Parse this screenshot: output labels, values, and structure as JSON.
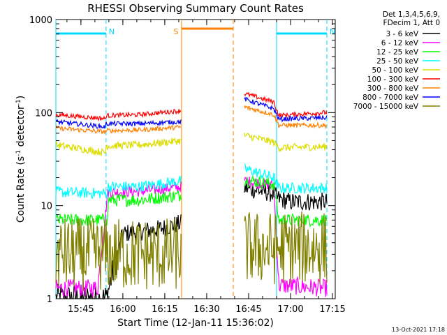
{
  "chart_data": {
    "type": "line",
    "title": "RHESSI Observing Summary Count Rates",
    "xlabel": "Start Time (12-Jan-11 15:36:02)",
    "ylabel": "Count Rate (s⁻¹ detector⁻¹)",
    "ylabel_parts": {
      "pre": "Count Rate (s",
      "sup1": "-1",
      "mid": " detector",
      "sup2": "-1",
      "post": ")"
    },
    "y_scale": "log",
    "ylim": [
      1,
      1000
    ],
    "xlim": [
      "15:36:02",
      "17:16:00"
    ],
    "x_ticks": [
      "15:45",
      "16:00",
      "16:15",
      "16:30",
      "16:45",
      "17:00",
      "17:15"
    ],
    "y_ticks": [
      "1",
      "10",
      "100",
      "1000"
    ],
    "grid": false,
    "legend_position": "right",
    "legend_header": [
      "Det 1,3,4,5,6,9,",
      "FDecim 1, Att 0"
    ],
    "timestamp": "13-Oct-2021 17:18",
    "data_gap": [
      "16:21:00",
      "16:43:30"
    ],
    "events": [
      {
        "label": "N",
        "kind": "night",
        "color": "#00d8ff",
        "start": "15:36:02",
        "end": "15:54:00",
        "night_begin": "15:36:02",
        "night_end": "15:54:00"
      },
      {
        "label": "N",
        "kind": "night",
        "color": "#00d8ff",
        "start": "16:55:00",
        "end": "17:13:00",
        "night_begin": "16:55:00",
        "night_end": "17:13:00"
      },
      {
        "label": "S",
        "kind": "saa",
        "color": "#ff8000",
        "start": "16:21:00",
        "end": "16:39:30"
      }
    ],
    "series": [
      {
        "name": "3 - 6 keV",
        "color": "#000000",
        "pre": [
          [
            15.6,
            1
          ],
          [
            15.9,
            1
          ],
          [
            16.0,
            5.0
          ],
          [
            16.21,
            5.6
          ],
          [
            16.35,
            6.5
          ]
        ],
        "post": [
          [
            16.725,
            15.5
          ],
          [
            16.9,
            13.5
          ],
          [
            16.92,
            12.0
          ],
          [
            17.0,
            11
          ]
        ],
        "noise": 0.1
      },
      {
        "name": "6 - 12 keV",
        "color": "#ff00ff",
        "pre": [
          [
            15.6,
            1.3
          ],
          [
            15.85,
            1.3
          ],
          [
            15.91,
            14.0
          ],
          [
            16.1,
            14.2
          ],
          [
            16.35,
            16
          ]
        ],
        "post": [
          [
            16.725,
            18.5
          ],
          [
            16.9,
            16.5
          ],
          [
            16.93,
            1.4
          ],
          [
            17.2,
            1.3
          ]
        ],
        "noise": 0.06
      },
      {
        "name": "12 - 25 keV",
        "color": "#00ff00",
        "pre": [
          [
            15.6,
            7.0
          ],
          [
            15.91,
            7.0
          ],
          [
            15.92,
            11.5
          ],
          [
            16.1,
            11.5
          ],
          [
            16.35,
            13
          ]
        ],
        "post": [
          [
            16.725,
            19
          ],
          [
            16.9,
            17
          ],
          [
            16.93,
            7.0
          ],
          [
            17.2,
            7.0
          ]
        ],
        "noise": 0.07
      },
      {
        "name": "25 - 50 keV",
        "color": "#00ffff",
        "pre": [
          [
            15.6,
            14.0
          ],
          [
            15.91,
            13.5
          ],
          [
            15.92,
            16.0
          ],
          [
            16.1,
            16.0
          ],
          [
            16.35,
            18.5
          ]
        ],
        "post": [
          [
            16.725,
            25
          ],
          [
            16.9,
            20
          ],
          [
            16.93,
            15.5
          ],
          [
            17.2,
            15.5
          ]
        ],
        "noise": 0.06
      },
      {
        "name": "50 - 100 keV",
        "color": "#dddd00",
        "pre": [
          [
            15.6,
            45
          ],
          [
            15.9,
            37
          ],
          [
            15.92,
            44
          ],
          [
            16.1,
            45
          ],
          [
            16.35,
            50
          ]
        ],
        "post": [
          [
            16.725,
            57
          ],
          [
            16.9,
            48
          ],
          [
            16.93,
            42
          ],
          [
            17.2,
            43
          ]
        ],
        "noise": 0.04
      },
      {
        "name": "100 - 300 keV",
        "color": "#ff0000",
        "pre": [
          [
            15.6,
            95
          ],
          [
            15.9,
            86
          ],
          [
            15.92,
            93
          ],
          [
            16.1,
            95
          ],
          [
            16.35,
            105
          ]
        ],
        "post": [
          [
            16.725,
            160
          ],
          [
            16.9,
            130
          ],
          [
            16.93,
            93
          ],
          [
            17.2,
            100
          ]
        ],
        "noise": 0.025
      },
      {
        "name": "300 - 800 keV",
        "color": "#ff8000",
        "pre": [
          [
            15.6,
            68
          ],
          [
            15.9,
            62
          ],
          [
            15.92,
            64
          ],
          [
            16.1,
            65
          ],
          [
            16.35,
            70
          ]
        ],
        "post": [
          [
            16.725,
            115
          ],
          [
            16.9,
            95
          ],
          [
            16.93,
            73
          ],
          [
            17.2,
            73
          ]
        ],
        "noise": 0.025
      },
      {
        "name": "800 - 7000 keV",
        "color": "#0000ff",
        "pre": [
          [
            15.6,
            80
          ],
          [
            15.9,
            70
          ],
          [
            15.92,
            76
          ],
          [
            16.1,
            76
          ],
          [
            16.35,
            80
          ]
        ],
        "post": [
          [
            16.725,
            140
          ],
          [
            16.9,
            110
          ],
          [
            16.93,
            85
          ],
          [
            17.2,
            88
          ]
        ],
        "noise": 0.025
      },
      {
        "name": "7000 - 15000 keV",
        "color": "#808000",
        "pre": [
          [
            15.6,
            3.0
          ],
          [
            15.9,
            3.0
          ],
          [
            16.1,
            3.0
          ],
          [
            16.35,
            3.0
          ]
        ],
        "post": [
          [
            16.725,
            3.5
          ],
          [
            17.2,
            3.5
          ]
        ],
        "noise": 0.25
      }
    ]
  }
}
